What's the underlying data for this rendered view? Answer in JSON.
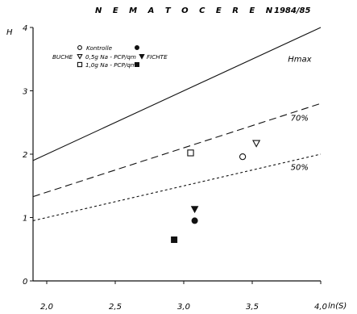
{
  "chart_data": {
    "type": "scatter",
    "title": "N E M A T O C E R E N",
    "year_label": "1984/85",
    "ylabel": "H",
    "xlabel": "ln(S)",
    "xlim": [
      1.9,
      4.0
    ],
    "ylim": [
      0,
      4
    ],
    "x_ticks": [
      {
        "value": 2.0,
        "label": "2,0"
      },
      {
        "value": 2.5,
        "label": "2,5"
      },
      {
        "value": 3.0,
        "label": "3,0"
      },
      {
        "value": 3.5,
        "label": "3,5"
      },
      {
        "value": 4.0,
        "label": "4,0"
      }
    ],
    "y_ticks": [
      {
        "value": 0,
        "label": "0"
      },
      {
        "value": 1,
        "label": "1"
      },
      {
        "value": 2,
        "label": "2"
      },
      {
        "value": 3,
        "label": "3"
      },
      {
        "value": 4,
        "label": "4"
      }
    ],
    "reference_lines": [
      {
        "label": "Hmax",
        "style": "solid",
        "x": [
          1.9,
          4.0
        ],
        "y": [
          1.9,
          4.0
        ],
        "label_at": [
          3.76,
          3.46
        ]
      },
      {
        "label": "70%",
        "style": "dashed",
        "x": [
          1.9,
          4.0
        ],
        "y": [
          1.33,
          2.8
        ],
        "label_at": [
          3.78,
          2.53
        ]
      },
      {
        "label": "50%",
        "style": "dotted",
        "x": [
          1.9,
          4.0
        ],
        "y": [
          0.95,
          2.0
        ],
        "label_at": [
          3.78,
          1.75
        ]
      }
    ],
    "legend": {
      "header_row": {
        "label": "Kontrolle",
        "buche_symbol": "circle-open",
        "fichte_symbol": "circle-filled"
      },
      "rows": [
        {
          "group": "BUCHE",
          "label": "0,5g Na - PCP/qm",
          "buche_symbol": "triangle-open",
          "fichte_label": "FICHTE",
          "fichte_symbol": "triangle-filled"
        },
        {
          "label": "1,0g Na - PCP/qm",
          "buche_symbol": "square-open",
          "fichte_symbol": "square-filled"
        }
      ]
    },
    "points": [
      {
        "x": 3.43,
        "y": 1.96,
        "symbol": "circle-open",
        "stand": "BUCHE",
        "treatment": "Kontrolle"
      },
      {
        "x": 3.53,
        "y": 2.17,
        "symbol": "triangle-open",
        "stand": "BUCHE",
        "treatment": "0,5g Na-PCP/qm"
      },
      {
        "x": 3.05,
        "y": 2.02,
        "symbol": "square-open",
        "stand": "BUCHE",
        "treatment": "1,0g Na-PCP/qm"
      },
      {
        "x": 3.08,
        "y": 0.95,
        "symbol": "circle-filled",
        "stand": "FICHTE",
        "treatment": "Kontrolle"
      },
      {
        "x": 3.08,
        "y": 1.13,
        "symbol": "triangle-filled",
        "stand": "FICHTE",
        "treatment": "0,5g Na-PCP/qm"
      },
      {
        "x": 2.93,
        "y": 0.65,
        "symbol": "square-filled",
        "stand": "FICHTE",
        "treatment": "1,0g Na-PCP/qm"
      }
    ]
  }
}
